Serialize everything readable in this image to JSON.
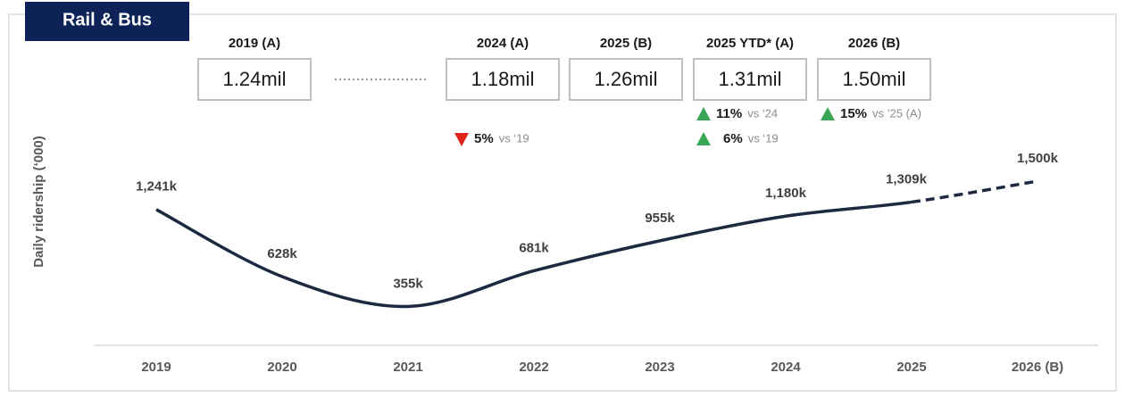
{
  "chart_data": {
    "type": "line",
    "title": "Rail & Bus",
    "y_label": "Daily ridership (‘000)",
    "categories": [
      "2019",
      "2020",
      "2021",
      "2022",
      "2023",
      "2024",
      "2025",
      "2026 (B)"
    ],
    "series": [
      {
        "name": "Daily ridership",
        "color": "#1b2a41",
        "values": [
          1241,
          628,
          355,
          681,
          955,
          1180,
          1309,
          1500
        ],
        "value_labels": [
          "1,241k",
          "628k",
          "355k",
          "681k",
          "955k",
          "1,180k",
          "1,309k",
          "1,500k"
        ],
        "point_styles": [
          "actual",
          "actual",
          "actual",
          "actual",
          "actual",
          "actual",
          "actual",
          "budget"
        ]
      }
    ],
    "ylim": [
      0,
      1500
    ],
    "summary": [
      {
        "label": "2019 (A)",
        "value": "1.24mil",
        "changes": []
      },
      {
        "label": "2024 (A)",
        "value": "1.18mil",
        "changes": [
          {
            "direction": "down",
            "value": "5%",
            "vs": "vs ‘19"
          }
        ]
      },
      {
        "label": "2025 (B)",
        "value": "1.26mil",
        "changes": []
      },
      {
        "label": "2025 YTD* (A)",
        "value": "1.31mil",
        "changes": [
          {
            "direction": "up",
            "value": "11%",
            "vs": "vs ‘24"
          },
          {
            "direction": "up",
            "value": "6%",
            "vs": "vs ‘19"
          }
        ]
      },
      {
        "label": "2026 (B)",
        "value": "1.50mil",
        "changes": [
          {
            "direction": "up",
            "value": "15%",
            "vs": "vs ’25 (A)"
          }
        ]
      }
    ]
  }
}
